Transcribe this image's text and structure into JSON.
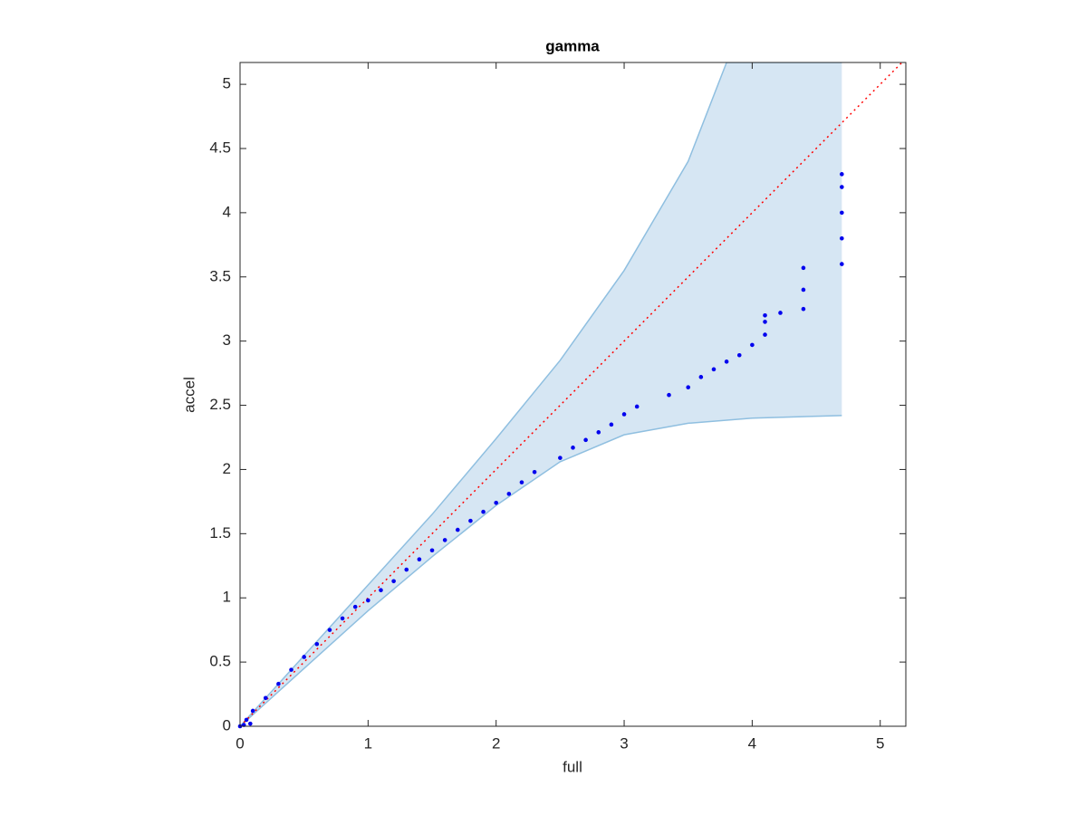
{
  "chart_data": {
    "type": "scatter",
    "title": "gamma",
    "x_label": "full",
    "y_label": "accel",
    "xlim": [
      0,
      5.2
    ],
    "ylim": [
      0,
      5.17
    ],
    "xticks": [
      0,
      1,
      2,
      3,
      4,
      5
    ],
    "yticks": [
      0,
      0.5,
      1,
      1.5,
      2,
      2.5,
      3,
      3.5,
      4,
      4.5,
      5
    ],
    "band": {
      "color": "#d6e6f3",
      "edge_color": "#8fbfe0",
      "upper": {
        "x": [
          0,
          0.5,
          1,
          1.5,
          2,
          2.5,
          3,
          3.5,
          3.8,
          4.7
        ],
        "values": [
          0,
          0.55,
          1.1,
          1.65,
          2.24,
          2.85,
          3.55,
          4.4,
          5.17,
          5.17
        ]
      },
      "lower": {
        "x": [
          0,
          0.5,
          1,
          1.5,
          2,
          2.5,
          3,
          3.5,
          4,
          4.7
        ],
        "values": [
          0,
          0.45,
          0.9,
          1.32,
          1.72,
          2.06,
          2.27,
          2.36,
          2.4,
          2.42
        ]
      }
    },
    "reference": {
      "color": "#ff0000",
      "x": [
        0,
        5.17
      ],
      "values": [
        0,
        5.17
      ]
    },
    "series": [
      {
        "color": "#0000ee",
        "x": [
          0,
          0.03,
          0.08,
          0.05,
          0.1,
          0.2,
          0.3,
          0.4,
          0.5,
          0.6,
          0.7,
          0.8,
          0.9,
          1.0,
          1.1,
          1.2,
          1.3,
          1.4,
          1.5,
          1.6,
          1.7,
          1.8,
          1.9,
          2.0,
          2.1,
          2.2,
          2.3,
          2.5,
          2.6,
          2.7,
          2.8,
          2.9,
          3.0,
          3.1,
          3.35,
          3.5,
          3.6,
          3.7,
          3.8,
          3.9,
          4.0,
          4.1,
          4.1,
          4.1,
          4.22,
          4.4,
          4.4,
          4.4,
          4.7,
          4.7,
          4.7,
          4.7,
          4.7
        ],
        "values": [
          0,
          0.01,
          0.02,
          0.05,
          0.12,
          0.22,
          0.33,
          0.44,
          0.54,
          0.64,
          0.75,
          0.84,
          0.93,
          0.98,
          1.06,
          1.13,
          1.22,
          1.3,
          1.37,
          1.45,
          1.53,
          1.6,
          1.67,
          1.74,
          1.81,
          1.9,
          1.98,
          2.09,
          2.17,
          2.23,
          2.29,
          2.35,
          2.43,
          2.49,
          2.58,
          2.64,
          2.72,
          2.78,
          2.84,
          2.89,
          2.97,
          3.05,
          3.15,
          3.2,
          3.22,
          3.25,
          3.4,
          3.57,
          3.6,
          3.8,
          4.0,
          4.2,
          4.3
        ]
      }
    ]
  }
}
